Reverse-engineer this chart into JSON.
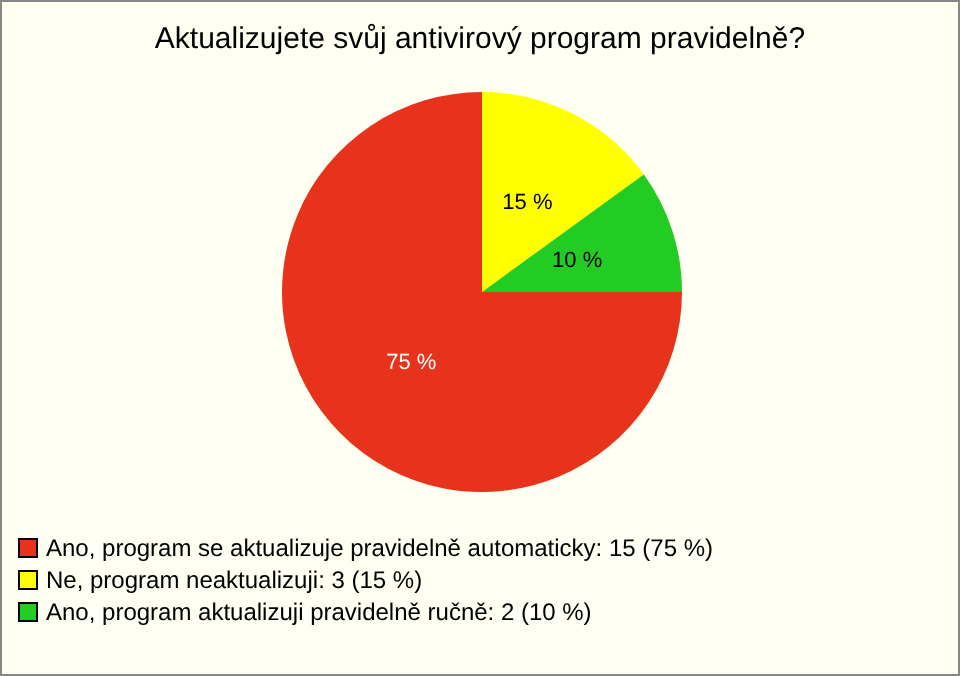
{
  "chart_data": {
    "type": "pie",
    "title": "Aktualizujete svůj antivirový program pravidelně?",
    "categories": [
      "Ano, program se aktualizuje pravidelně automaticky: 15 (75 %)",
      "Ne, program neaktualizuji: 3 (15 %)",
      "Ano, program aktualizuji pravidelně ručně: 2 (10 %)"
    ],
    "values": [
      75,
      15,
      10
    ],
    "colors": [
      "#e8331c",
      "#ffff00",
      "#22cc22"
    ],
    "value_labels": [
      "75 %",
      "15 %",
      "10 %"
    ],
    "data_labels": true,
    "legend": "bottom left"
  }
}
